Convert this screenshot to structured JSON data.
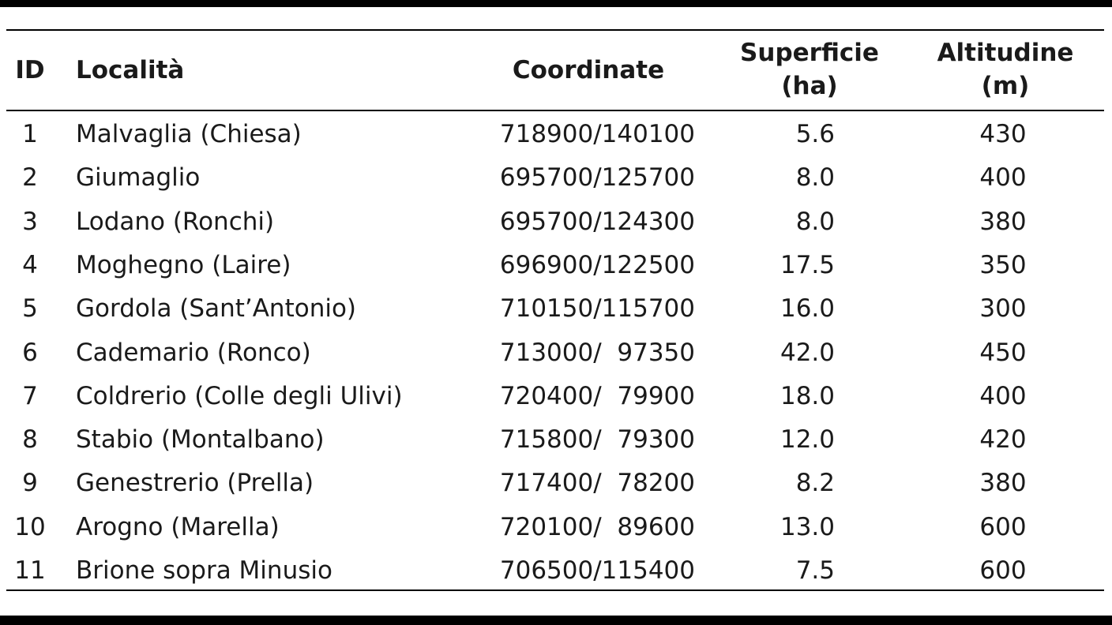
{
  "table": {
    "headers": [
      "ID",
      "Località",
      "Coordinate",
      "Superficie\n(ha)",
      "Altitudine\n(m)"
    ],
    "rows": [
      [
        "1",
        "Malvaglia (Chiesa)",
        "718900/140100",
        "5.6",
        "430"
      ],
      [
        "2",
        "Giumaglio",
        "695700/125700",
        "8.0",
        "400"
      ],
      [
        "3",
        "Lodano (Ronchi)",
        "695700/124300",
        "8.0",
        "380"
      ],
      [
        "4",
        "Moghegno (Laire)",
        "696900/122500",
        "17.5",
        "350"
      ],
      [
        "5",
        "Gordola (Sant’Antonio)",
        "710150/115700",
        "16.0",
        "300"
      ],
      [
        "6",
        "Cademario (Ronco)",
        "713000/  97350",
        "42.0",
        "450"
      ],
      [
        "7",
        "Coldrerio (Colle degli Ulivi)",
        "720400/  79900",
        "18.0",
        "400"
      ],
      [
        "8",
        "Stabio (Montalbano)",
        "715800/  79300",
        "12.0",
        "420"
      ],
      [
        "9",
        "Genestrerio (Prella)",
        "717400/  78200",
        "8.2",
        "380"
      ],
      [
        "10",
        "Arogno (Marella)",
        "720100/  89600",
        "13.0",
        "600"
      ],
      [
        "11",
        "Brione sopra Minusio",
        "706500/115400",
        "7.5",
        "600"
      ]
    ]
  }
}
